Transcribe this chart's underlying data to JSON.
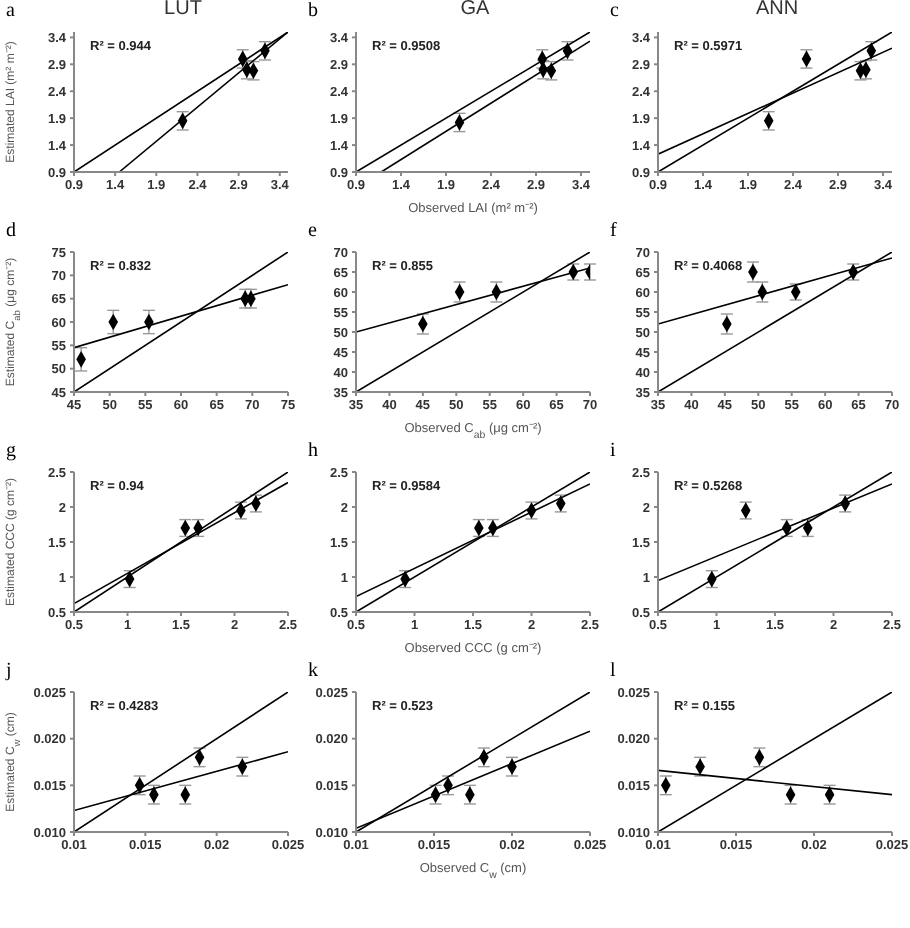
{
  "chart_data": [
    {
      "type": "scatter",
      "title": "LUT",
      "ylabel": "Estimated LAI (m² m⁻²)",
      "annotations": [
        "a",
        "R² = 0.944"
      ],
      "xlim": [
        0.9,
        3.5
      ],
      "ylim": [
        0.9,
        3.5
      ],
      "xticks": [
        0.9,
        1.4,
        1.9,
        2.4,
        2.9,
        3.4
      ],
      "yticks": [
        0.9,
        1.4,
        1.9,
        2.4,
        2.9,
        3.4
      ],
      "series": [
        {
          "type": "scatter",
          "marker": "diamond",
          "color": "#000000",
          "x": [
            2.22,
            2.95,
            3.0,
            3.08,
            3.22
          ],
          "values": [
            1.85,
            3.0,
            2.8,
            2.78,
            3.15
          ],
          "errors": [
            0.17,
            0.17,
            0.17,
            0.17,
            0.17
          ]
        },
        {
          "type": "line",
          "color": "#000000",
          "x": [
            1.45,
            3.5
          ],
          "values": [
            0.9,
            3.5
          ]
        },
        {
          "type": "line",
          "color": "#000000",
          "x": [
            0.9,
            3.5
          ],
          "values": [
            0.9,
            3.5
          ]
        }
      ]
    },
    {
      "type": "scatter",
      "title": "GA",
      "xlabel": "Observed LAI (m² m⁻²)",
      "annotations": [
        "b",
        "R² = 0.9508"
      ],
      "xlim": [
        0.9,
        3.5
      ],
      "ylim": [
        0.9,
        3.5
      ],
      "xticks": [
        0.9,
        1.4,
        1.9,
        2.4,
        2.9,
        3.4
      ],
      "yticks": [
        0.9,
        1.4,
        1.9,
        2.4,
        2.9,
        3.4
      ],
      "series": [
        {
          "type": "scatter",
          "marker": "diamond",
          "color": "#000000",
          "x": [
            2.05,
            2.97,
            2.98,
            3.07,
            3.25
          ],
          "values": [
            1.82,
            3.0,
            2.8,
            2.78,
            3.15
          ],
          "errors": [
            0.17,
            0.17,
            0.17,
            0.17,
            0.17
          ]
        },
        {
          "type": "line",
          "color": "#000000",
          "x": [
            1.18,
            3.5
          ],
          "values": [
            0.9,
            3.33
          ]
        },
        {
          "type": "line",
          "color": "#000000",
          "x": [
            0.9,
            3.5
          ],
          "values": [
            0.9,
            3.5
          ]
        }
      ]
    },
    {
      "type": "scatter",
      "title": "ANN",
      "annotations": [
        "c",
        "R² = 0.5971"
      ],
      "xlim": [
        0.9,
        3.5
      ],
      "ylim": [
        0.9,
        3.5
      ],
      "xticks": [
        0.9,
        1.4,
        1.9,
        2.4,
        2.9,
        3.4
      ],
      "yticks": [
        0.9,
        1.4,
        1.9,
        2.4,
        2.9,
        3.4
      ],
      "series": [
        {
          "type": "scatter",
          "marker": "diamond",
          "color": "#000000",
          "x": [
            2.13,
            2.55,
            3.15,
            3.21,
            3.27
          ],
          "values": [
            1.85,
            3.0,
            2.78,
            2.8,
            3.15
          ],
          "errors": [
            0.17,
            0.17,
            0.17,
            0.17,
            0.17
          ]
        },
        {
          "type": "line",
          "color": "#000000",
          "x": [
            0.9,
            3.5
          ],
          "values": [
            1.23,
            3.2
          ]
        },
        {
          "type": "line",
          "color": "#000000",
          "x": [
            0.9,
            3.5
          ],
          "values": [
            0.9,
            3.5
          ]
        }
      ]
    },
    {
      "type": "scatter",
      "ylabel": "Estimated C$_{ab}$ (μg cm⁻²)",
      "annotations": [
        "d",
        "R² = 0.832"
      ],
      "xlim": [
        45,
        75
      ],
      "ylim": [
        45,
        75
      ],
      "xticks": [
        45,
        50,
        55,
        60,
        65,
        70,
        75
      ],
      "yticks": [
        45,
        50,
        55,
        60,
        65,
        70,
        75
      ],
      "series": [
        {
          "type": "scatter",
          "marker": "diamond",
          "color": "#000000",
          "x": [
            46,
            50.5,
            55.5,
            69,
            69.8
          ],
          "values": [
            52,
            60,
            60,
            65,
            65
          ],
          "errors": [
            2.5,
            2.5,
            2.5,
            2,
            2
          ]
        },
        {
          "type": "line",
          "color": "#000000",
          "x": [
            45,
            75
          ],
          "values": [
            54.5,
            68
          ]
        },
        {
          "type": "line",
          "color": "#000000",
          "x": [
            45,
            75
          ],
          "values": [
            45,
            75
          ]
        }
      ]
    },
    {
      "type": "scatter",
      "xlabel": "Observed C$_{ab}$ (μg cm⁻²)",
      "annotations": [
        "e",
        "R² = 0.855"
      ],
      "xlim": [
        35,
        70
      ],
      "ylim": [
        35,
        70
      ],
      "xticks": [
        35,
        40,
        45,
        50,
        55,
        60,
        65,
        70
      ],
      "yticks": [
        35,
        40,
        45,
        50,
        55,
        60,
        65,
        70
      ],
      "series": [
        {
          "type": "scatter",
          "marker": "diamond",
          "color": "#000000",
          "x": [
            45,
            50.5,
            56,
            67.5,
            70
          ],
          "values": [
            52,
            60,
            60,
            65,
            65
          ],
          "errors": [
            2.5,
            2.5,
            2.5,
            2,
            2
          ]
        },
        {
          "type": "line",
          "color": "#000000",
          "x": [
            35,
            70
          ],
          "values": [
            50,
            66
          ]
        },
        {
          "type": "line",
          "color": "#000000",
          "x": [
            35,
            70
          ],
          "values": [
            35,
            70
          ]
        }
      ]
    },
    {
      "type": "scatter",
      "annotations": [
        "f",
        "R² = 0.4068"
      ],
      "xlim": [
        35,
        70
      ],
      "ylim": [
        35,
        70
      ],
      "xticks": [
        35,
        40,
        45,
        50,
        55,
        60,
        65,
        70
      ],
      "yticks": [
        35,
        40,
        45,
        50,
        55,
        60,
        65,
        70
      ],
      "series": [
        {
          "type": "scatter",
          "marker": "diamond",
          "color": "#000000",
          "x": [
            45.3,
            49.2,
            50.6,
            55.6,
            64.2
          ],
          "values": [
            52,
            65,
            60,
            60,
            65
          ],
          "errors": [
            2.5,
            2.5,
            2.5,
            2,
            2
          ]
        },
        {
          "type": "line",
          "color": "#000000",
          "x": [
            35,
            70
          ],
          "values": [
            52,
            68.5
          ]
        },
        {
          "type": "line",
          "color": "#000000",
          "x": [
            35,
            70
          ],
          "values": [
            35,
            70
          ]
        }
      ]
    },
    {
      "type": "scatter",
      "ylabel": "Estimated CCC (g cm⁻²)",
      "annotations": [
        "g",
        "R² = 0.94"
      ],
      "xlim": [
        0.5,
        2.5
      ],
      "ylim": [
        0.5,
        2.5
      ],
      "xticks": [
        0.5,
        1,
        1.5,
        2,
        2.5
      ],
      "yticks": [
        0.5,
        1,
        1.5,
        2,
        2.5
      ],
      "series": [
        {
          "type": "scatter",
          "marker": "diamond",
          "color": "#000000",
          "x": [
            1.02,
            1.54,
            1.66,
            2.06,
            2.2
          ],
          "values": [
            0.97,
            1.7,
            1.7,
            1.95,
            2.05
          ],
          "errors": [
            0.12,
            0.12,
            0.12,
            0.12,
            0.12
          ]
        },
        {
          "type": "line",
          "color": "#000000",
          "x": [
            0.5,
            2.5
          ],
          "values": [
            0.62,
            2.35
          ]
        },
        {
          "type": "line",
          "color": "#000000",
          "x": [
            0.5,
            2.5
          ],
          "values": [
            0.5,
            2.5
          ]
        }
      ]
    },
    {
      "type": "scatter",
      "xlabel": "Observed CCC (g cm⁻²)",
      "annotations": [
        "h",
        "R² = 0.9584"
      ],
      "xlim": [
        0.5,
        2.5
      ],
      "ylim": [
        0.5,
        2.5
      ],
      "xticks": [
        0.5,
        1,
        1.5,
        2,
        2.5
      ],
      "yticks": [
        0.5,
        1,
        1.5,
        2,
        2.5
      ],
      "series": [
        {
          "type": "scatter",
          "marker": "diamond",
          "color": "#000000",
          "x": [
            0.92,
            1.55,
            1.67,
            2.0,
            2.25
          ],
          "values": [
            0.97,
            1.7,
            1.7,
            1.95,
            2.05
          ],
          "errors": [
            0.12,
            0.12,
            0.12,
            0.12,
            0.12
          ]
        },
        {
          "type": "line",
          "color": "#000000",
          "x": [
            0.5,
            2.5
          ],
          "values": [
            0.72,
            2.33
          ]
        },
        {
          "type": "line",
          "color": "#000000",
          "x": [
            0.5,
            2.5
          ],
          "values": [
            0.5,
            2.5
          ]
        }
      ]
    },
    {
      "type": "scatter",
      "annotations": [
        "i",
        "R² = 0.5268"
      ],
      "xlim": [
        0.5,
        2.5
      ],
      "ylim": [
        0.5,
        2.5
      ],
      "xticks": [
        0.5,
        1,
        1.5,
        2,
        2.5
      ],
      "yticks": [
        0.5,
        1,
        1.5,
        2,
        2.5
      ],
      "series": [
        {
          "type": "scatter",
          "marker": "diamond",
          "color": "#000000",
          "x": [
            0.96,
            1.25,
            1.6,
            1.78,
            2.1
          ],
          "values": [
            0.97,
            1.95,
            1.7,
            1.7,
            2.05
          ],
          "errors": [
            0.12,
            0.12,
            0.12,
            0.12,
            0.12
          ]
        },
        {
          "type": "line",
          "color": "#000000",
          "x": [
            0.5,
            2.5
          ],
          "values": [
            0.95,
            2.33
          ]
        },
        {
          "type": "line",
          "color": "#000000",
          "x": [
            0.5,
            2.5
          ],
          "values": [
            0.5,
            2.5
          ]
        }
      ]
    },
    {
      "type": "scatter",
      "ylabel": "Estimated C$_{w}$ (cm)",
      "annotations": [
        "j",
        "R² = 0.4283"
      ],
      "xlim": [
        0.01,
        0.025
      ],
      "ylim": [
        0.01,
        0.025
      ],
      "xticks": [
        0.01,
        0.015,
        0.02,
        0.025
      ],
      "yticks": [
        {
          "value": 0.01,
          "label": "0.010"
        },
        {
          "value": 0.015,
          "label": "0.015"
        },
        {
          "value": 0.02,
          "label": "0.020"
        },
        {
          "value": 0.025,
          "label": "0.025"
        }
      ],
      "series": [
        {
          "type": "scatter",
          "marker": "diamond",
          "color": "#000000",
          "x": [
            0.0146,
            0.0156,
            0.0178,
            0.0188,
            0.0218
          ],
          "values": [
            0.015,
            0.014,
            0.014,
            0.018,
            0.017
          ],
          "errors": [
            0.001,
            0.001,
            0.001,
            0.001,
            0.001
          ]
        },
        {
          "type": "line",
          "color": "#000000",
          "x": [
            0.01,
            0.025
          ],
          "values": [
            0.0123,
            0.0186
          ]
        },
        {
          "type": "line",
          "color": "#000000",
          "x": [
            0.01,
            0.025
          ],
          "values": [
            0.01,
            0.025
          ]
        }
      ]
    },
    {
      "type": "scatter",
      "xlabel": "Observed C$_{w}$ (cm)",
      "annotations": [
        "k",
        "R² = 0.523"
      ],
      "xlim": [
        0.01,
        0.025
      ],
      "ylim": [
        0.01,
        0.025
      ],
      "xticks": [
        0.01,
        0.015,
        0.02,
        0.025
      ],
      "yticks": [
        {
          "value": 0.01,
          "label": "0.010"
        },
        {
          "value": 0.015,
          "label": "0.015"
        },
        {
          "value": 0.02,
          "label": "0.020"
        },
        {
          "value": 0.025,
          "label": "0.025"
        }
      ],
      "series": [
        {
          "type": "scatter",
          "marker": "diamond",
          "color": "#000000",
          "x": [
            0.0151,
            0.0159,
            0.0173,
            0.0182,
            0.02
          ],
          "values": [
            0.014,
            0.015,
            0.014,
            0.018,
            0.017
          ],
          "errors": [
            0.001,
            0.001,
            0.001,
            0.001,
            0.001
          ]
        },
        {
          "type": "line",
          "color": "#000000",
          "x": [
            0.01,
            0.025
          ],
          "values": [
            0.0104,
            0.0208
          ]
        },
        {
          "type": "line",
          "color": "#000000",
          "x": [
            0.01,
            0.025
          ],
          "values": [
            0.01,
            0.025
          ]
        }
      ]
    },
    {
      "type": "scatter",
      "annotations": [
        "l",
        "R² = 0.155"
      ],
      "xlim": [
        0.01,
        0.025
      ],
      "ylim": [
        0.01,
        0.025
      ],
      "xticks": [
        0.01,
        0.015,
        0.02,
        0.025
      ],
      "yticks": [
        {
          "value": 0.01,
          "label": "0.010"
        },
        {
          "value": 0.015,
          "label": "0.015"
        },
        {
          "value": 0.02,
          "label": "0.020"
        },
        {
          "value": 0.025,
          "label": "0.025"
        }
      ],
      "series": [
        {
          "type": "scatter",
          "marker": "diamond",
          "color": "#000000",
          "x": [
            0.0105,
            0.0127,
            0.0165,
            0.0185,
            0.021
          ],
          "values": [
            0.015,
            0.017,
            0.018,
            0.014,
            0.014
          ],
          "errors": [
            0.001,
            0.001,
            0.001,
            0.001,
            0.001
          ]
        },
        {
          "type": "line",
          "color": "#000000",
          "x": [
            0.01,
            0.025
          ],
          "values": [
            0.0166,
            0.014
          ]
        },
        {
          "type": "line",
          "color": "#000000",
          "x": [
            0.01,
            0.025
          ],
          "values": [
            0.01,
            0.025
          ]
        }
      ]
    }
  ]
}
